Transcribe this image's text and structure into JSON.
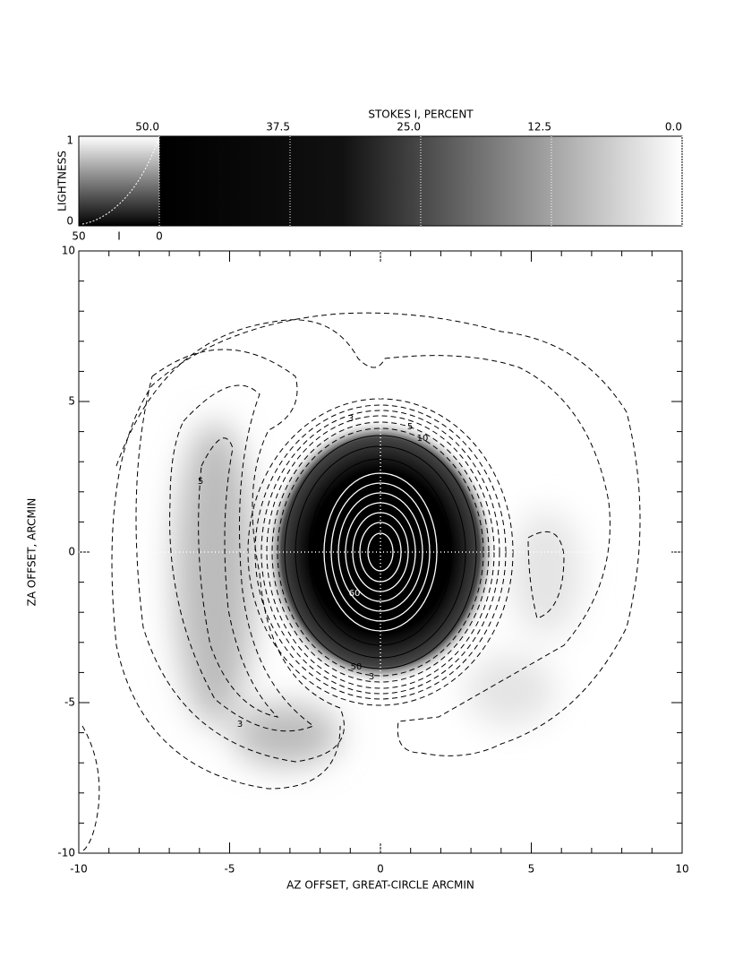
{
  "chart_data": {
    "type": "contour",
    "xlabel": "AZ OFFSET, GREAT-CIRCLE ARCMIN",
    "ylabel": "ZA OFFSET, ARCMIN",
    "xlim": [
      -10,
      10
    ],
    "ylim": [
      -10,
      10
    ],
    "xticks": [
      -10,
      -5,
      0,
      5,
      10
    ],
    "yticks": [
      -10,
      -5,
      0,
      5,
      10
    ],
    "contour_labels": [
      "3",
      "5",
      "10",
      "50",
      "60",
      "5",
      "3",
      "3"
    ],
    "colorbar": {
      "label": "STOKES I, PERCENT",
      "xlim": [
        50,
        0
      ],
      "xticks": [
        {
          "value": 50,
          "label": "50.0"
        },
        37.5,
        {
          "value": 25,
          "label": "25.0"
        },
        12.5,
        {
          "value": 0,
          "label": "0.0"
        }
      ]
    },
    "lightness": {
      "ylabel": "LIGHTNESS",
      "yticks": [
        0,
        1
      ],
      "xlabels": [
        "50",
        "I",
        "0"
      ]
    }
  }
}
